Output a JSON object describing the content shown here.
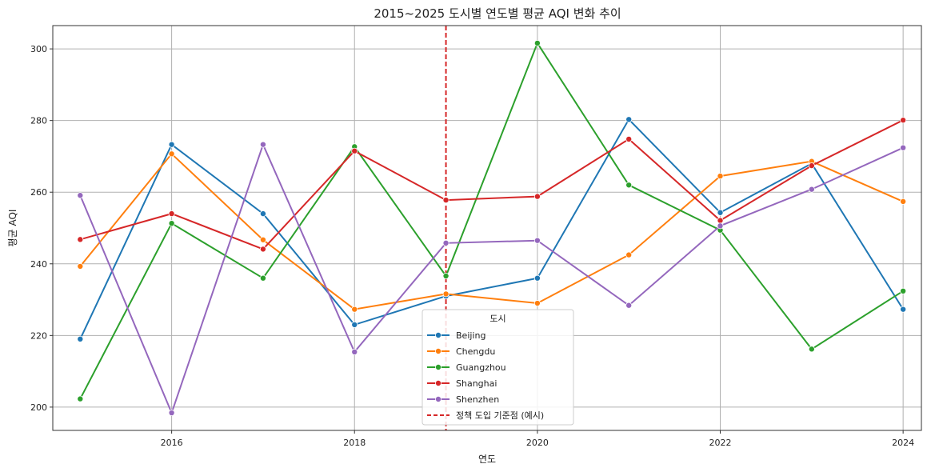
{
  "chart_data": {
    "type": "line",
    "title": "2015~2025 도시별 연도별 평균 AQI 변화 추이",
    "xlabel": "연도",
    "ylabel": "평균 AQI",
    "x": [
      2015,
      2016,
      2017,
      2018,
      2019,
      2020,
      2021,
      2022,
      2023,
      2024
    ],
    "xlim": [
      2014.7,
      2024.2
    ],
    "ylim": [
      193.5,
      306.5
    ],
    "xticks": [
      2016,
      2018,
      2020,
      2022,
      2024
    ],
    "yticks": [
      200,
      220,
      240,
      260,
      280,
      300
    ],
    "grid": true,
    "legend": {
      "title": "도시",
      "position": "bottom-center"
    },
    "series": [
      {
        "name": "Beijing",
        "color": "#1f77b4",
        "values": [
          219,
          273.3,
          254,
          223,
          231,
          236,
          280.3,
          254.3,
          268,
          227.3
        ]
      },
      {
        "name": "Chengdu",
        "color": "#ff7f0e",
        "values": [
          239.3,
          270.7,
          246.7,
          227.3,
          231.6,
          229,
          242.5,
          264.5,
          268.6,
          257.4
        ]
      },
      {
        "name": "Guangzhou",
        "color": "#2ca02c",
        "values": [
          202.3,
          251.3,
          236,
          272.7,
          236.6,
          301.6,
          262,
          249.4,
          216.2,
          232.4
        ]
      },
      {
        "name": "Shanghai",
        "color": "#d62728",
        "values": [
          246.8,
          254,
          244.1,
          271.5,
          257.8,
          258.8,
          274.8,
          252.1,
          267.4,
          280.1
        ]
      },
      {
        "name": "Shenzhen",
        "color": "#9467bd",
        "values": [
          259.1,
          198.4,
          273.3,
          215.4,
          245.8,
          246.5,
          228.4,
          250.6,
          260.8,
          272.4
        ]
      }
    ],
    "reference_line": {
      "x": 2019,
      "label": "정책 도입 기준점 (예시)",
      "color": "#d62728",
      "style": "dashed"
    }
  }
}
